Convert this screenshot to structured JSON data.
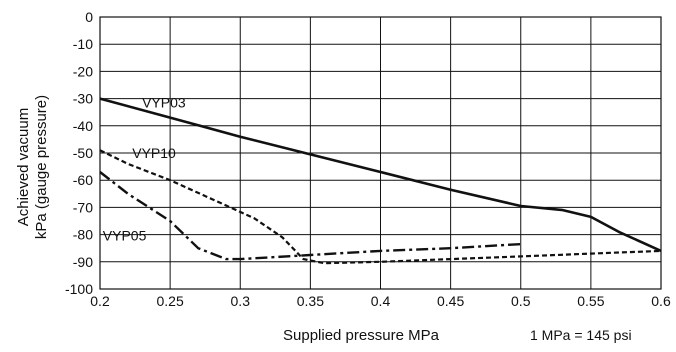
{
  "chart_data": {
    "type": "line",
    "xlabel": "Supplied pressure MPa",
    "ylabel_lines": [
      "Achieved vacuum",
      "kPa (gauge pressure)"
    ],
    "note": "1 MPa = 145 psi",
    "xlim": [
      0.2,
      0.6
    ],
    "ylim": [
      -100,
      0
    ],
    "xticks": [
      0.2,
      0.25,
      0.3,
      0.35,
      0.4,
      0.45,
      0.5,
      0.55,
      0.6
    ],
    "xtick_labels": [
      "0.2",
      "0.25",
      "0.3",
      "0.35",
      "0.4",
      "0.45",
      "0.5",
      "0.55",
      "0.6"
    ],
    "yticks": [
      0,
      -10,
      -20,
      -30,
      -40,
      -50,
      -60,
      -70,
      -80,
      -90,
      -100
    ],
    "ytick_labels": [
      "0",
      "-10",
      "-20",
      "-30",
      "-40",
      "-50",
      "-60",
      "-70",
      "-80",
      "-90",
      "-100"
    ],
    "grid": true,
    "series": [
      {
        "name": "VYP03",
        "style": "solid",
        "x": [
          0.2,
          0.25,
          0.3,
          0.35,
          0.4,
          0.45,
          0.5,
          0.53,
          0.55,
          0.57,
          0.6
        ],
        "y": [
          -30,
          -37,
          -44,
          -50.5,
          -57,
          -63.5,
          -69.5,
          -71,
          -73.5,
          -79,
          -86
        ]
      },
      {
        "name": "VYP10",
        "style": "dashed",
        "x": [
          0.2,
          0.22,
          0.25,
          0.28,
          0.31,
          0.33,
          0.345,
          0.36,
          0.4,
          0.45,
          0.5,
          0.55,
          0.6
        ],
        "y": [
          -49,
          -54,
          -60,
          -67,
          -74,
          -81,
          -89,
          -90.5,
          -90,
          -89,
          -88,
          -87,
          -86
        ]
      },
      {
        "name": "VYP05",
        "style": "dashdot",
        "x": [
          0.2,
          0.22,
          0.25,
          0.27,
          0.29,
          0.3,
          0.35,
          0.4,
          0.45,
          0.5
        ],
        "y": [
          -57,
          -65,
          -75,
          -85,
          -89,
          -89,
          -87.5,
          -86,
          -85,
          -83.5
        ]
      }
    ]
  }
}
